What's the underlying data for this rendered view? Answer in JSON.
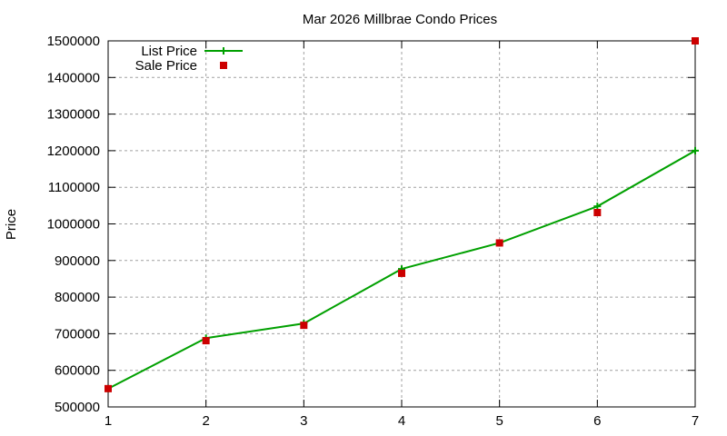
{
  "chart_data": {
    "type": "line",
    "title": "Mar 2026 Millbrae Condo Prices",
    "xlabel": "",
    "ylabel": "Price",
    "x": [
      1,
      2,
      3,
      4,
      5,
      6,
      7
    ],
    "xlim": [
      1,
      7
    ],
    "ylim": [
      500000,
      1500000
    ],
    "xticks": [
      "1",
      "2",
      "3",
      "4",
      "5",
      "6",
      "7"
    ],
    "yticks": [
      "500000",
      "600000",
      "700000",
      "800000",
      "900000",
      "1000000",
      "1100000",
      "1200000",
      "1300000",
      "1400000",
      "1500000"
    ],
    "grid": true,
    "legend_position": "top-left",
    "series": [
      {
        "name": "List Price",
        "style": "line+cross",
        "color": "#00a000",
        "values": [
          550000,
          688000,
          728000,
          877000,
          948000,
          1048000,
          1200000
        ]
      },
      {
        "name": "Sale Price",
        "style": "square-points",
        "color": "#cc0000",
        "values": [
          550000,
          681000,
          723000,
          865000,
          948000,
          1031000,
          1500000
        ]
      }
    ]
  }
}
